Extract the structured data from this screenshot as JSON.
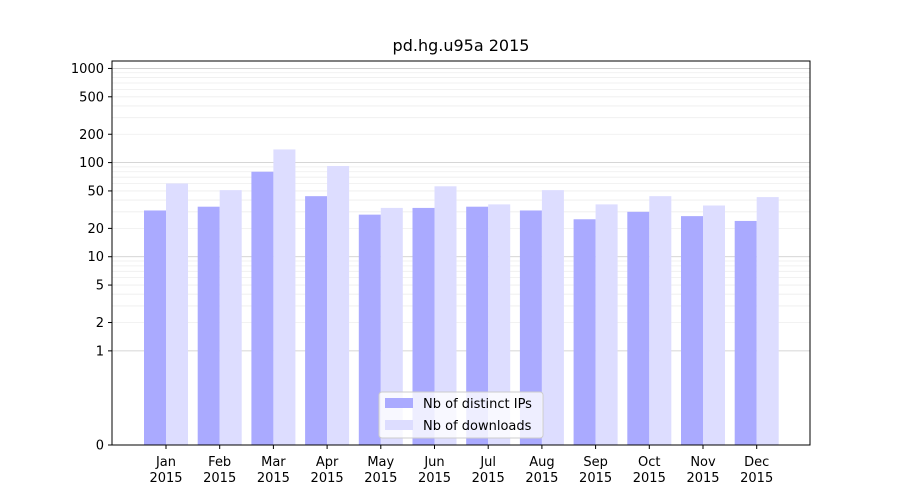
{
  "chart_data": {
    "type": "bar",
    "title": "pd.hg.u95a 2015",
    "xlabel": "",
    "ylabel": "",
    "yscale": "symlog",
    "ylim": [
      0,
      1200
    ],
    "yticks": [
      0,
      1,
      2,
      5,
      10,
      20,
      50,
      100,
      200,
      500,
      1000
    ],
    "ytick_labels": [
      "0",
      "1",
      "2",
      "5",
      "10",
      "20",
      "50",
      "100",
      "200",
      "500",
      "1000"
    ],
    "grid": true,
    "legend_position": "bottom-center",
    "categories": [
      "Jan 2015",
      "Feb 2015",
      "Mar 2015",
      "Apr 2015",
      "May 2015",
      "Jun 2015",
      "Jul 2015",
      "Aug 2015",
      "Sep 2015",
      "Oct 2015",
      "Nov 2015",
      "Dec 2015"
    ],
    "category_lines": [
      [
        "Jan",
        "2015"
      ],
      [
        "Feb",
        "2015"
      ],
      [
        "Mar",
        "2015"
      ],
      [
        "Apr",
        "2015"
      ],
      [
        "May",
        "2015"
      ],
      [
        "Jun",
        "2015"
      ],
      [
        "Jul",
        "2015"
      ],
      [
        "Aug",
        "2015"
      ],
      [
        "Sep",
        "2015"
      ],
      [
        "Oct",
        "2015"
      ],
      [
        "Nov",
        "2015"
      ],
      [
        "Dec",
        "2015"
      ]
    ],
    "series": [
      {
        "name": "Nb of distinct IPs",
        "color": "#aaaaff",
        "values": [
          31,
          34,
          80,
          44,
          28,
          33,
          34,
          31,
          25,
          30,
          27,
          24
        ]
      },
      {
        "name": "Nb of downloads",
        "color": "#ddddff",
        "values": [
          60,
          51,
          138,
          92,
          33,
          56,
          36,
          51,
          36,
          44,
          35,
          43
        ]
      }
    ]
  }
}
